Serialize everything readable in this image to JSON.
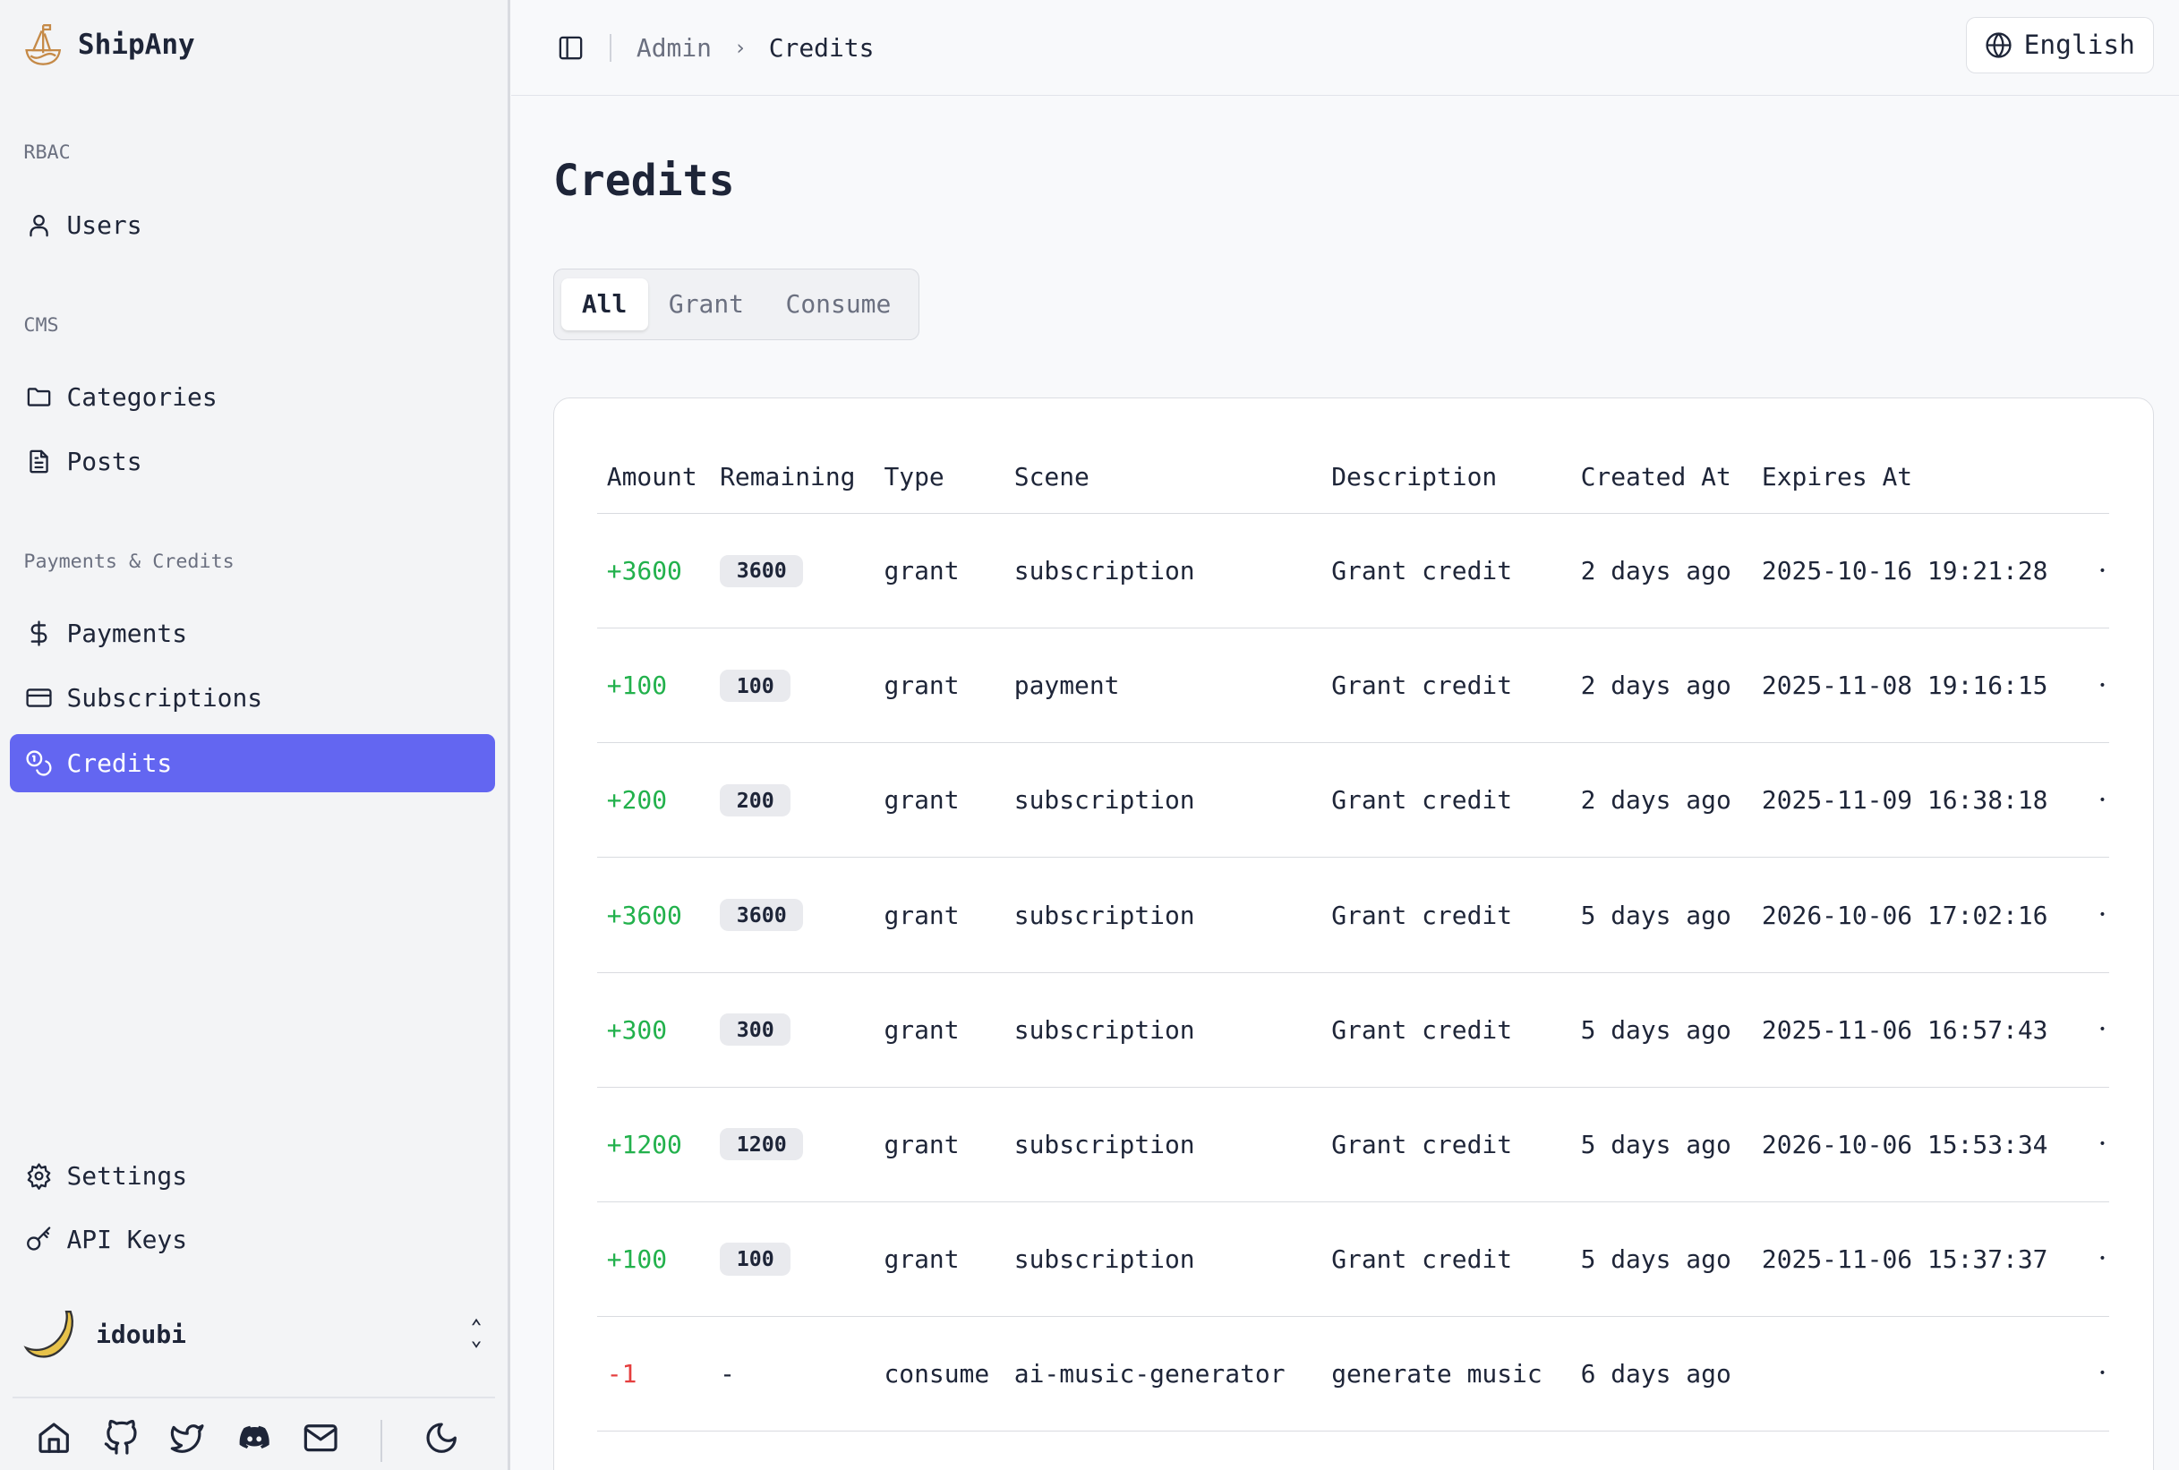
{
  "brand": {
    "name": "ShipAny"
  },
  "sidebar": {
    "groups": [
      {
        "label": "RBAC"
      },
      {
        "label": "CMS"
      },
      {
        "label": "Payments & Credits"
      }
    ],
    "items": [
      {
        "label": "Users",
        "icon": "user-icon"
      },
      {
        "label": "Categories",
        "icon": "folder-icon"
      },
      {
        "label": "Posts",
        "icon": "file-text-icon"
      },
      {
        "label": "Payments",
        "icon": "dollar-icon"
      },
      {
        "label": "Subscriptions",
        "icon": "credit-card-icon"
      },
      {
        "label": "Credits",
        "icon": "coins-icon",
        "active": true
      },
      {
        "label": "Settings",
        "icon": "gear-icon"
      },
      {
        "label": "API Keys",
        "icon": "key-icon"
      }
    ],
    "user": {
      "name": "idoubi"
    },
    "footer_icons": [
      "home-icon",
      "github-icon",
      "twitter-icon",
      "discord-icon",
      "mail-icon",
      "moon-icon"
    ]
  },
  "header": {
    "breadcrumb": [
      "Admin",
      "Credits"
    ],
    "language": "English"
  },
  "page": {
    "title": "Credits",
    "tabs": [
      "All",
      "Grant",
      "Consume"
    ],
    "active_tab": "All"
  },
  "table": {
    "columns": [
      "Amount",
      "Remaining",
      "Type",
      "Scene",
      "Description",
      "Created At",
      "Expires At"
    ],
    "rows": [
      {
        "amount": "+3600",
        "remaining": "3600",
        "type": "grant",
        "scene": "subscription",
        "description": "Grant credit",
        "created": "2 days ago",
        "expires": "2025-10-16 19:21:28"
      },
      {
        "amount": "+100",
        "remaining": "100",
        "type": "grant",
        "scene": "payment",
        "description": "Grant credit",
        "created": "2 days ago",
        "expires": "2025-11-08 19:16:15"
      },
      {
        "amount": "+200",
        "remaining": "200",
        "type": "grant",
        "scene": "subscription",
        "description": "Grant credit",
        "created": "2 days ago",
        "expires": "2025-11-09 16:38:18"
      },
      {
        "amount": "+3600",
        "remaining": "3600",
        "type": "grant",
        "scene": "subscription",
        "description": "Grant credit",
        "created": "5 days ago",
        "expires": "2026-10-06 17:02:16"
      },
      {
        "amount": "+300",
        "remaining": "300",
        "type": "grant",
        "scene": "subscription",
        "description": "Grant credit",
        "created": "5 days ago",
        "expires": "2025-11-06 16:57:43"
      },
      {
        "amount": "+1200",
        "remaining": "1200",
        "type": "grant",
        "scene": "subscription",
        "description": "Grant credit",
        "created": "5 days ago",
        "expires": "2026-10-06 15:53:34"
      },
      {
        "amount": "+100",
        "remaining": "100",
        "type": "grant",
        "scene": "subscription",
        "description": "Grant credit",
        "created": "5 days ago",
        "expires": "2025-11-06 15:37:37"
      },
      {
        "amount": "-1",
        "remaining": "-",
        "type": "consume",
        "scene": "ai-music-generator",
        "description": "generate music",
        "created": "6 days ago",
        "expires": ""
      }
    ]
  },
  "colors": {
    "accent": "#6366f1",
    "positive": "#22b14c",
    "negative": "#e53e3e",
    "logo": "#c58a48"
  }
}
